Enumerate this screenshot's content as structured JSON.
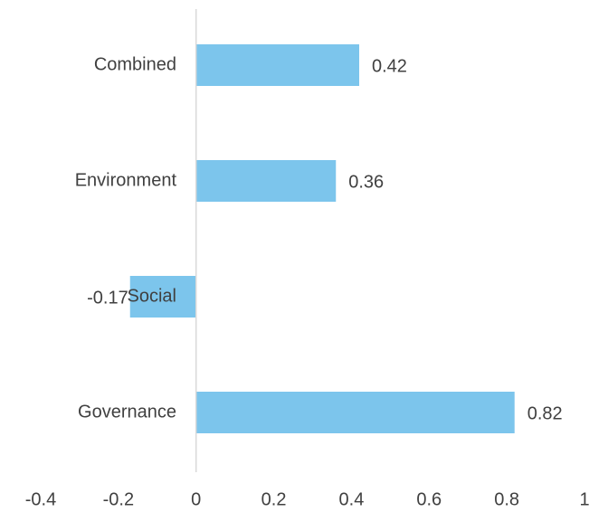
{
  "chart_data": {
    "type": "barh",
    "categories": [
      "Combined",
      "Environment",
      "Social",
      "Governance"
    ],
    "values": [
      0.42,
      0.36,
      -0.17,
      0.82
    ],
    "color": "#7cc5ec",
    "xlim": [
      -0.4,
      1
    ],
    "xticks": [
      -0.4,
      -0.2,
      0,
      0.2,
      0.4,
      0.6,
      0.8,
      1
    ],
    "grid": false
  }
}
